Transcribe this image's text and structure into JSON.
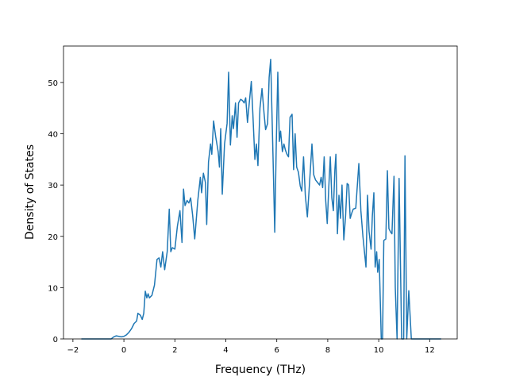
{
  "chart_data": {
    "type": "line",
    "xlabel": "Frequency (THz)",
    "ylabel": "Density of States",
    "xlim": [
      -2.37,
      13.08
    ],
    "ylim": [
      0,
      57.1
    ],
    "xticks": [
      {
        "value": -2,
        "label": "−2"
      },
      0,
      2,
      4,
      6,
      8,
      10,
      12
    ],
    "yticks": [
      0,
      10,
      20,
      30,
      40,
      50
    ],
    "series": [
      {
        "color": "#1f77b4",
        "x": [
          -1.67,
          -0.5,
          -0.4,
          -0.3,
          -0.2,
          -0.1,
          0,
          0.1,
          0.2,
          0.3,
          0.4,
          0.5,
          0.55,
          0.65,
          0.72,
          0.78,
          0.84,
          0.9,
          0.95,
          1.0,
          1.1,
          1.2,
          1.3,
          1.38,
          1.45,
          1.52,
          1.6,
          1.7,
          1.78,
          1.84,
          1.9,
          2.0,
          2.1,
          2.2,
          2.28,
          2.34,
          2.4,
          2.48,
          2.55,
          2.62,
          2.7,
          2.78,
          2.9,
          3.0,
          3.05,
          3.12,
          3.2,
          3.25,
          3.32,
          3.4,
          3.45,
          3.52,
          3.6,
          3.7,
          3.75,
          3.8,
          3.86,
          3.95,
          4.05,
          4.11,
          4.18,
          4.25,
          4.3,
          4.38,
          4.44,
          4.5,
          4.58,
          4.65,
          4.72,
          4.78,
          4.85,
          4.92,
          5.0,
          5.06,
          5.14,
          5.2,
          5.26,
          5.34,
          5.42,
          5.5,
          5.56,
          5.64,
          5.7,
          5.76,
          5.85,
          5.92,
          5.98,
          6.04,
          6.1,
          6.15,
          6.22,
          6.28,
          6.34,
          6.4,
          6.46,
          6.52,
          6.6,
          6.66,
          6.72,
          6.78,
          6.85,
          6.92,
          6.98,
          7.05,
          7.12,
          7.2,
          7.28,
          7.38,
          7.45,
          7.52,
          7.6,
          7.68,
          7.74,
          7.8,
          7.86,
          7.92,
          7.98,
          8.04,
          8.1,
          8.16,
          8.22,
          8.28,
          8.32,
          8.38,
          8.44,
          8.5,
          8.56,
          8.63,
          8.7,
          8.76,
          8.82,
          8.88,
          8.94,
          9.0,
          9.1,
          9.22,
          9.3,
          9.38,
          9.44,
          9.5,
          9.56,
          9.62,
          9.7,
          9.75,
          9.81,
          9.86,
          9.92,
          9.96,
          10.02,
          10.1,
          10.15,
          10.2,
          10.28,
          10.34,
          10.4,
          10.47,
          10.52,
          10.6,
          10.65,
          10.72,
          10.8,
          10.9,
          10.98,
          11.03,
          11.1,
          11.18,
          11.28,
          12.45
        ],
        "values": [
          0,
          0,
          0.4,
          0.6,
          0.5,
          0.4,
          0.5,
          0.8,
          1.3,
          2,
          3,
          3.5,
          5,
          4.6,
          3.8,
          5,
          9.3,
          8,
          8.8,
          8,
          8.5,
          10.5,
          15.5,
          15.8,
          14,
          17,
          13.5,
          17,
          25.3,
          17,
          17.8,
          17.5,
          22,
          25,
          18.8,
          29.2,
          26,
          27,
          26.5,
          27.5,
          24,
          19.5,
          27,
          31.5,
          28.5,
          32.3,
          30.5,
          22.3,
          34.5,
          38,
          36,
          42.5,
          39.5,
          36.5,
          33.5,
          41,
          28.2,
          38,
          42,
          52,
          37.8,
          43.5,
          41,
          46,
          39.3,
          46,
          46.7,
          46.5,
          46,
          47,
          42.2,
          46,
          50.2,
          44,
          35,
          38,
          33.8,
          45,
          48.8,
          44,
          40.8,
          42,
          51,
          54.5,
          36,
          20.8,
          38,
          52,
          38.5,
          40.5,
          36.5,
          38,
          36.8,
          36,
          35.5,
          43.2,
          43.8,
          33,
          40,
          33.5,
          32.5,
          29.8,
          28.8,
          35.5,
          28,
          23.8,
          30,
          38,
          32,
          31,
          30.5,
          30,
          31.5,
          29.5,
          35.5,
          27,
          22.5,
          29.5,
          35.5,
          27.5,
          25,
          33,
          36,
          20.5,
          28,
          23.5,
          30,
          19.3,
          24,
          30.3,
          30,
          23.5,
          24.5,
          25.3,
          25.5,
          34.2,
          25,
          20,
          17,
          14,
          28,
          21,
          17.5,
          24,
          28.5,
          14,
          17,
          13,
          15.5,
          0,
          0,
          19.2,
          19.5,
          32.8,
          21.5,
          20.8,
          20.5,
          31.7,
          10,
          0,
          31.3,
          0,
          0,
          35.7,
          0,
          9.4,
          0,
          0
        ]
      }
    ]
  }
}
